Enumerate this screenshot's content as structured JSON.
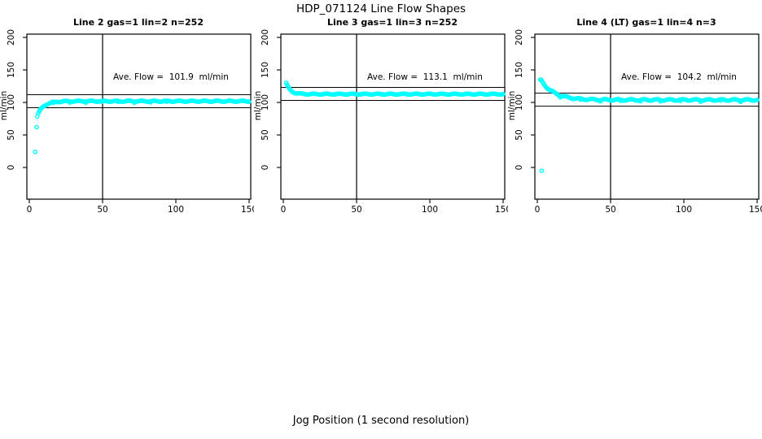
{
  "figure_title": "HDP_071124  Line Flow Shapes",
  "x_axis_label": "Jog Position (1 second resolution)",
  "point_color": "#00FFFF",
  "line_color": "#000000",
  "axis": {
    "x_ticks": [
      0,
      50,
      100,
      150
    ],
    "y_ticks": [
      0,
      50,
      100,
      150,
      200
    ],
    "xlim": [
      0,
      153
    ],
    "ylim": [
      -48,
      205
    ],
    "vertical_marker_x": 50
  },
  "chart_data": [
    {
      "type": "scatter",
      "title": "Line 2 gas=1 lin=2 n=252",
      "ylabel": "ml/min",
      "annotation": "Ave. Flow =  101.9  ml/min",
      "ave_flow": 101.9,
      "ref_lines": {
        "upper": 111.9,
        "lower": 91.9
      },
      "vline_x": 50,
      "curve": {
        "shape": "rise-to-plateau",
        "x_start": 5.5,
        "x_end": 150,
        "n": 250,
        "plateau": 101.9,
        "amp": -22,
        "tau": 4.2,
        "jitter": 0.8,
        "dips": {
          "mod": 19,
          "delta": -1.6,
          "x_max": 95
        }
      },
      "outliers": [
        [
          4,
          24
        ],
        [
          5,
          62
        ]
      ],
      "sample_points": [
        [
          4,
          24
        ],
        [
          5,
          62
        ],
        [
          6,
          80
        ],
        [
          8,
          91
        ],
        [
          10,
          96
        ],
        [
          15,
          100
        ],
        [
          20,
          101
        ],
        [
          30,
          102
        ],
        [
          50,
          102
        ],
        [
          75,
          102
        ],
        [
          100,
          102
        ],
        [
          125,
          102
        ],
        [
          150,
          102
        ]
      ]
    },
    {
      "type": "scatter",
      "title": "Line 3 gas=1 lin=3 n=252",
      "ylabel": "ml/min",
      "annotation": "Ave. Flow =  113.1  ml/min",
      "ave_flow": 113.1,
      "ref_lines": {
        "upper": 123.1,
        "lower": 103.1
      },
      "vline_x": 50,
      "curve": {
        "shape": "decay-to-plateau",
        "x_start": 2,
        "x_end": 150,
        "n": 252,
        "plateau": 112.8,
        "amp": 17,
        "tau": 2.8,
        "jitter": 0.7,
        "dips": null
      },
      "outliers": [],
      "sample_points": [
        [
          2,
          130
        ],
        [
          4,
          122
        ],
        [
          6,
          117
        ],
        [
          8,
          115
        ],
        [
          10,
          114
        ],
        [
          15,
          113
        ],
        [
          25,
          113
        ],
        [
          50,
          113
        ],
        [
          75,
          113
        ],
        [
          100,
          113
        ],
        [
          125,
          112
        ],
        [
          150,
          112
        ]
      ]
    },
    {
      "type": "scatter",
      "title": "Line 4 (LT) gas=1 lin=4 n=3",
      "ylabel": "ml/min",
      "annotation": "Ave. Flow =  104.2  ml/min",
      "ave_flow": 104.2,
      "ref_lines": {
        "upper": 114.2,
        "lower": 94.2
      },
      "vline_x": 50,
      "curve": {
        "shape": "decay-to-plateau",
        "x_start": 2,
        "x_end": 150,
        "n": 250,
        "plateau": 103.9,
        "amp": 32,
        "tau": 9,
        "jitter": 1.1,
        "dips": {
          "mod": 23,
          "delta": -2.0,
          "x_max": 150
        }
      },
      "outliers": [
        [
          3,
          -5
        ]
      ],
      "sample_points": [
        [
          3,
          -5
        ],
        [
          2,
          136
        ],
        [
          5,
          128
        ],
        [
          10,
          120
        ],
        [
          15,
          114
        ],
        [
          20,
          110
        ],
        [
          30,
          106
        ],
        [
          40,
          105
        ],
        [
          50,
          104
        ],
        [
          75,
          104
        ],
        [
          100,
          104
        ],
        [
          125,
          104
        ],
        [
          150,
          104
        ]
      ]
    }
  ]
}
